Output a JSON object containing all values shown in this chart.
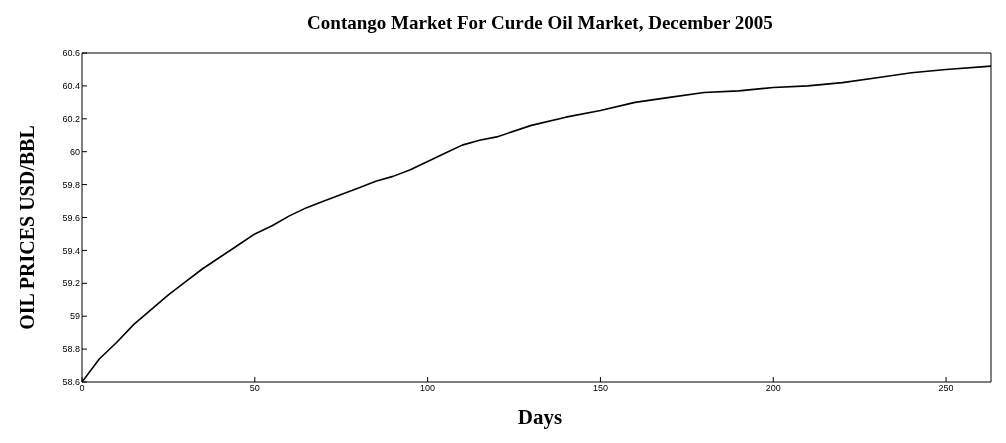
{
  "chart_data": {
    "type": "line",
    "title": "Contango Market For Curde Oil Market, December 2005",
    "xlabel": "Days",
    "ylabel": "OIL PRICES USD/BBL",
    "x": [
      0,
      5,
      10,
      15,
      20,
      25,
      30,
      35,
      40,
      45,
      50,
      55,
      60,
      65,
      70,
      75,
      80,
      85,
      90,
      95,
      100,
      105,
      110,
      115,
      120,
      130,
      140,
      150,
      160,
      170,
      180,
      190,
      200,
      210,
      220,
      230,
      240,
      250,
      263
    ],
    "series": [
      {
        "color": "#000000",
        "values": [
          58.6,
          58.74,
          58.84,
          58.95,
          59.04,
          59.13,
          59.21,
          59.29,
          59.36,
          59.43,
          59.5,
          59.55,
          59.61,
          59.66,
          59.7,
          59.74,
          59.78,
          59.82,
          59.85,
          59.89,
          59.94,
          59.99,
          60.04,
          60.07,
          60.09,
          60.16,
          60.21,
          60.25,
          60.3,
          60.33,
          60.36,
          60.37,
          60.39,
          60.4,
          60.42,
          60.45,
          60.48,
          60.5,
          60.52
        ]
      }
    ],
    "xlim": [
      0,
      263
    ],
    "xticks": [
      0,
      50,
      100,
      150,
      200,
      250
    ],
    "ylim": [
      58.6,
      60.6
    ],
    "yticks": [
      58.6,
      58.8,
      59,
      59.2,
      59.4,
      59.6,
      59.8,
      60,
      60.2,
      60.4,
      60.6
    ],
    "marker": "none",
    "line_style": "solid"
  }
}
